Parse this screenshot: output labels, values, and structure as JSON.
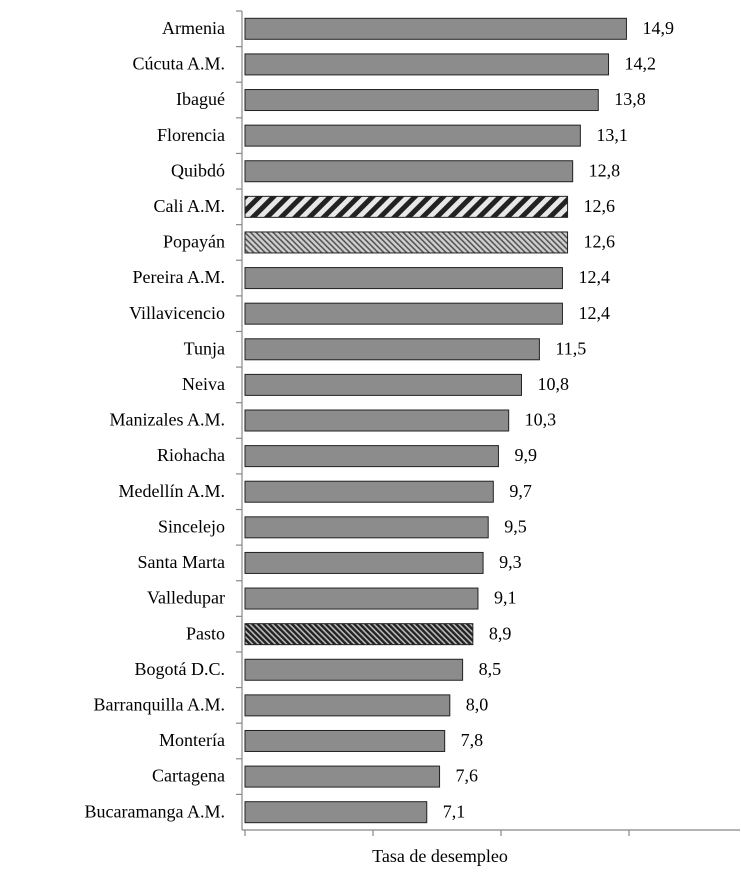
{
  "chart_data": {
    "type": "bar",
    "orientation": "horizontal",
    "x_label": "Tasa de desempleo",
    "categories": [
      "Armenia",
      "Cúcuta A.M.",
      "Ibagué",
      "Florencia",
      "Quibdó",
      "Cali A.M.",
      "Popayán",
      "Pereira A.M.",
      "Villavicencio",
      "Tunja",
      "Neiva",
      "Manizales A.M.",
      "Riohacha",
      "Medellín A.M.",
      "Sincelejo",
      "Santa Marta",
      "Valledupar",
      "Pasto",
      "Bogotá D.C.",
      "Barranquilla A.M.",
      "Montería",
      "Cartagena",
      "Bucaramanga A.M."
    ],
    "values": [
      14.9,
      14.2,
      13.8,
      13.1,
      12.8,
      12.6,
      12.6,
      12.4,
      12.4,
      11.5,
      10.8,
      10.3,
      9.9,
      9.7,
      9.5,
      9.3,
      9.1,
      8.9,
      8.5,
      8.0,
      7.8,
      7.6,
      7.1
    ],
    "value_labels": [
      "14,9",
      "14,2",
      "13,8",
      "13,1",
      "12,8",
      "12,6",
      "12,6",
      "12,4",
      "12,4",
      "11,5",
      "10,8",
      "10,3",
      "9,9",
      "9,7",
      "9,5",
      "9,3",
      "9,1",
      "8,9",
      "8,5",
      "8,0",
      "7,8",
      "7,6",
      "7,1"
    ],
    "color": "#8c8c8c",
    "bar_styles": [
      "solid",
      "solid",
      "solid",
      "solid",
      "solid",
      "stripes",
      "hatch-light",
      "solid",
      "solid",
      "solid",
      "solid",
      "solid",
      "solid",
      "solid",
      "solid",
      "solid",
      "solid",
      "hatch-dark",
      "solid",
      "solid",
      "solid",
      "solid",
      "solid"
    ],
    "xlim": [
      0,
      20
    ],
    "xticks": [
      0,
      5,
      10,
      15,
      20
    ]
  }
}
